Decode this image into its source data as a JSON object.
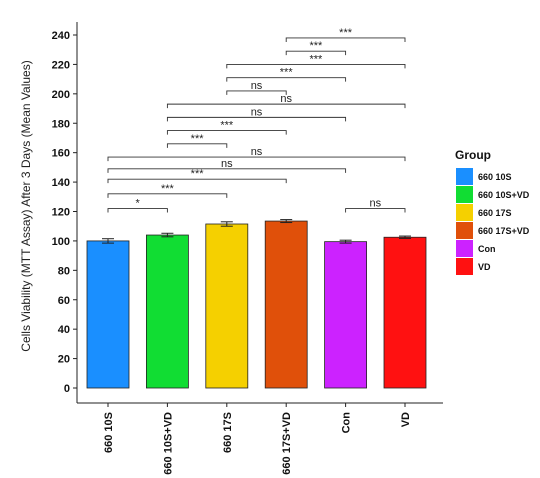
{
  "chart_data": {
    "type": "bar",
    "ylabel": "Cells Viability (MTT Assay) After 3 Days (Mean Values)",
    "xlabel": "",
    "ylim": [
      0,
      240
    ],
    "yticks": [
      0,
      20,
      40,
      60,
      80,
      100,
      120,
      140,
      160,
      180,
      200,
      220,
      240
    ],
    "grid": false,
    "legend_position": "right",
    "legend_title": "Group",
    "categories": [
      "660 10S",
      "660 10S+VD",
      "660 17S",
      "660 17S+VD",
      "Con",
      "VD"
    ],
    "values": [
      100.0,
      104.0,
      111.5,
      113.5,
      99.5,
      102.5
    ],
    "errors": [
      1.5,
      1.2,
      1.5,
      1.0,
      1.0,
      0.8
    ],
    "colors": [
      "#1a8fff",
      "#11dd33",
      "#f5d000",
      "#e0500a",
      "#cc22ff",
      "#ff1111"
    ],
    "legend": [
      "660 10S",
      "660 10S+VD",
      "660 17S",
      "660 17S+VD",
      "Con",
      "VD"
    ],
    "significance": [
      {
        "from": 0,
        "to": 1,
        "y": 122,
        "label": "*"
      },
      {
        "from": 0,
        "to": 2,
        "y": 132,
        "label": "***"
      },
      {
        "from": 0,
        "to": 3,
        "y": 142,
        "label": "***"
      },
      {
        "from": 0,
        "to": 4,
        "y": 149,
        "label": "ns"
      },
      {
        "from": 0,
        "to": 5,
        "y": 157,
        "label": "ns"
      },
      {
        "from": 1,
        "to": 2,
        "y": 166,
        "label": "***"
      },
      {
        "from": 1,
        "to": 3,
        "y": 175,
        "label": "***"
      },
      {
        "from": 1,
        "to": 4,
        "y": 184,
        "label": "ns"
      },
      {
        "from": 1,
        "to": 5,
        "y": 193,
        "label": "ns"
      },
      {
        "from": 2,
        "to": 3,
        "y": 202,
        "label": "ns"
      },
      {
        "from": 2,
        "to": 4,
        "y": 211,
        "label": "***"
      },
      {
        "from": 2,
        "to": 5,
        "y": 220,
        "label": "***"
      },
      {
        "from": 3,
        "to": 4,
        "y": 229,
        "label": "***"
      },
      {
        "from": 3,
        "to": 5,
        "y": 238,
        "label": "***"
      },
      {
        "from": 4,
        "to": 5,
        "y": 122,
        "label": "ns"
      }
    ]
  }
}
